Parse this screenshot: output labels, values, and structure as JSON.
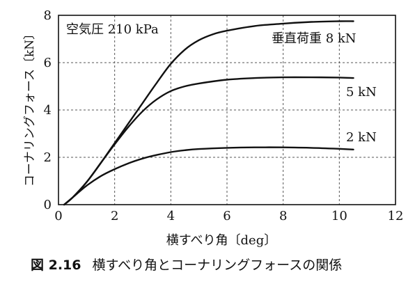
{
  "figure_caption": {
    "number": "図 2.16",
    "text": "横すべり角とコーナリングフォースの関係"
  },
  "chart_data": {
    "type": "line",
    "annotation": "空気圧 210 kPa",
    "xlabel": "横すべり角〔deg〕",
    "ylabel": "コーナリングフォース〔kN〕",
    "xlim": [
      0,
      12
    ],
    "ylim": [
      0,
      8
    ],
    "xticks": [
      0,
      2,
      4,
      6,
      8,
      10,
      12
    ],
    "yticks": [
      0,
      2,
      4,
      6,
      8
    ],
    "grid": true,
    "series": [
      {
        "name": "垂直荷重 8 kN",
        "x": [
          0.2,
          0.5,
          1,
          1.5,
          2,
          2.5,
          3,
          3.5,
          4,
          4.5,
          5,
          5.5,
          6,
          7,
          8,
          9,
          10,
          10.5
        ],
        "values": [
          0,
          0.3,
          0.95,
          1.75,
          2.6,
          3.45,
          4.3,
          5.15,
          5.95,
          6.55,
          6.95,
          7.2,
          7.35,
          7.55,
          7.65,
          7.72,
          7.75,
          7.75
        ]
      },
      {
        "name": "5 kN",
        "x": [
          0.2,
          0.5,
          1,
          1.5,
          2,
          2.5,
          3,
          3.5,
          4,
          4.5,
          5,
          6,
          7,
          8,
          9,
          10,
          10.5
        ],
        "values": [
          0,
          0.3,
          0.95,
          1.75,
          2.55,
          3.3,
          3.95,
          4.45,
          4.8,
          5.0,
          5.12,
          5.28,
          5.35,
          5.38,
          5.38,
          5.37,
          5.35
        ]
      },
      {
        "name": "2 kN",
        "x": [
          0.2,
          0.5,
          1,
          1.5,
          2,
          2.5,
          3,
          3.5,
          4,
          4.5,
          5,
          6,
          7,
          8,
          9,
          10,
          10.5
        ],
        "values": [
          0,
          0.3,
          0.8,
          1.2,
          1.5,
          1.75,
          1.95,
          2.1,
          2.22,
          2.3,
          2.35,
          2.4,
          2.42,
          2.42,
          2.4,
          2.36,
          2.33
        ]
      }
    ]
  }
}
